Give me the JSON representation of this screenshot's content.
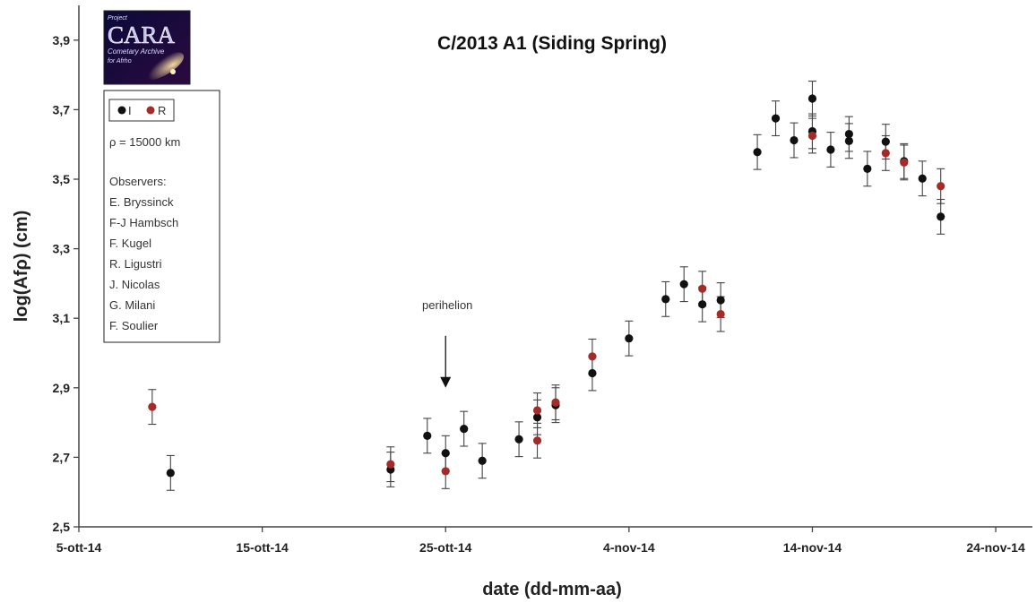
{
  "colors": {
    "I": "#111111",
    "R": "#a52a2a",
    "axis": "#444444",
    "errorbar": "#444444"
  },
  "logo": {
    "line1": "Project",
    "line2": "CARA",
    "line3": "Cometary Archive",
    "line4": "for Afrho"
  },
  "legend": {
    "I": "I",
    "R": "R",
    "rho": "ρ = 15000 km",
    "observers_title": "Observers:",
    "observers": [
      "E. Bryssinck",
      "F-J Hambsch",
      "F. Kugel",
      "R. Ligustri",
      "J. Nicolas",
      "G. Milani",
      "F. Soulier"
    ]
  },
  "chart_data": {
    "type": "scatter",
    "title": "C/2013 A1 (Siding Spring)",
    "xlabel": "date (dd-mm-aa)",
    "ylabel": "log(Afρ) (cm)",
    "xlim": [
      "2014-10-05",
      "2014-11-26"
    ],
    "ylim": [
      2.5,
      4.0
    ],
    "xticks": [
      "2014-10-05",
      "2014-10-15",
      "2014-10-25",
      "2014-11-04",
      "2014-11-14",
      "2014-11-24"
    ],
    "xtick_labels": [
      "5-ott-14",
      "15-ott-14",
      "25-ott-14",
      "4-nov-14",
      "14-nov-14",
      "24-nov-14"
    ],
    "yticks": [
      2.5,
      2.7,
      2.9,
      3.1,
      3.3,
      3.5,
      3.7,
      3.9
    ],
    "ytick_labels": [
      "2,5",
      "2,7",
      "2,9",
      "3,1",
      "3,3",
      "3,5",
      "3,7",
      "3,9"
    ],
    "grid": false,
    "legend_position": "top-left",
    "annotation": {
      "text": "perihelion",
      "date": "2014-10-25",
      "value": 2.9
    },
    "series": [
      {
        "name": "I",
        "points": [
          {
            "x": "2014-10-10",
            "y": 2.655,
            "err": 0.05
          },
          {
            "x": "2014-10-22",
            "y": 2.665,
            "err": 0.05
          },
          {
            "x": "2014-10-24",
            "y": 2.762,
            "err": 0.05
          },
          {
            "x": "2014-10-25",
            "y": 2.712,
            "err": 0.05
          },
          {
            "x": "2014-10-26",
            "y": 2.782,
            "err": 0.05
          },
          {
            "x": "2014-10-27",
            "y": 2.69,
            "err": 0.05
          },
          {
            "x": "2014-10-29",
            "y": 2.752,
            "err": 0.05
          },
          {
            "x": "2014-10-30",
            "y": 2.815,
            "err": 0.05
          },
          {
            "x": "2014-10-31",
            "y": 2.85,
            "err": 0.05
          },
          {
            "x": "2014-11-02",
            "y": 2.942,
            "err": 0.05
          },
          {
            "x": "2014-11-04",
            "y": 3.042,
            "err": 0.05
          },
          {
            "x": "2014-11-06",
            "y": 3.155,
            "err": 0.05
          },
          {
            "x": "2014-11-07",
            "y": 3.198,
            "err": 0.05
          },
          {
            "x": "2014-11-08",
            "y": 3.14,
            "err": 0.05
          },
          {
            "x": "2014-11-09",
            "y": 3.152,
            "err": 0.05
          },
          {
            "x": "2014-11-11",
            "y": 3.578,
            "err": 0.05
          },
          {
            "x": "2014-11-12",
            "y": 3.675,
            "err": 0.05
          },
          {
            "x": "2014-11-13",
            "y": 3.612,
            "err": 0.05
          },
          {
            "x": "2014-11-14",
            "y": 3.638,
            "err": 0.05
          },
          {
            "x": "2014-11-14",
            "y": 3.732,
            "err": 0.05
          },
          {
            "x": "2014-11-15",
            "y": 3.585,
            "err": 0.05
          },
          {
            "x": "2014-11-16",
            "y": 3.61,
            "err": 0.05
          },
          {
            "x": "2014-11-16",
            "y": 3.63,
            "err": 0.05
          },
          {
            "x": "2014-11-17",
            "y": 3.53,
            "err": 0.05
          },
          {
            "x": "2014-11-18",
            "y": 3.608,
            "err": 0.05
          },
          {
            "x": "2014-11-19",
            "y": 3.552,
            "err": 0.05
          },
          {
            "x": "2014-11-20",
            "y": 3.502,
            "err": 0.05
          },
          {
            "x": "2014-11-21",
            "y": 3.392,
            "err": 0.05
          }
        ]
      },
      {
        "name": "R",
        "points": [
          {
            "x": "2014-10-09",
            "y": 2.845,
            "err": 0.05
          },
          {
            "x": "2014-10-22",
            "y": 2.68,
            "err": 0.05
          },
          {
            "x": "2014-10-25",
            "y": 2.66,
            "err": 0.05
          },
          {
            "x": "2014-10-30",
            "y": 2.835,
            "err": 0.05
          },
          {
            "x": "2014-10-30",
            "y": 2.748,
            "err": 0.05
          },
          {
            "x": "2014-10-31",
            "y": 2.858,
            "err": 0.05
          },
          {
            "x": "2014-11-02",
            "y": 2.99,
            "err": 0.05
          },
          {
            "x": "2014-11-08",
            "y": 3.185,
            "err": 0.05
          },
          {
            "x": "2014-11-09",
            "y": 3.112,
            "err": 0.05
          },
          {
            "x": "2014-11-14",
            "y": 3.625,
            "err": 0.05
          },
          {
            "x": "2014-11-18",
            "y": 3.575,
            "err": 0.05
          },
          {
            "x": "2014-11-19",
            "y": 3.548,
            "err": 0.05
          },
          {
            "x": "2014-11-21",
            "y": 3.48,
            "err": 0.05
          }
        ]
      }
    ]
  }
}
